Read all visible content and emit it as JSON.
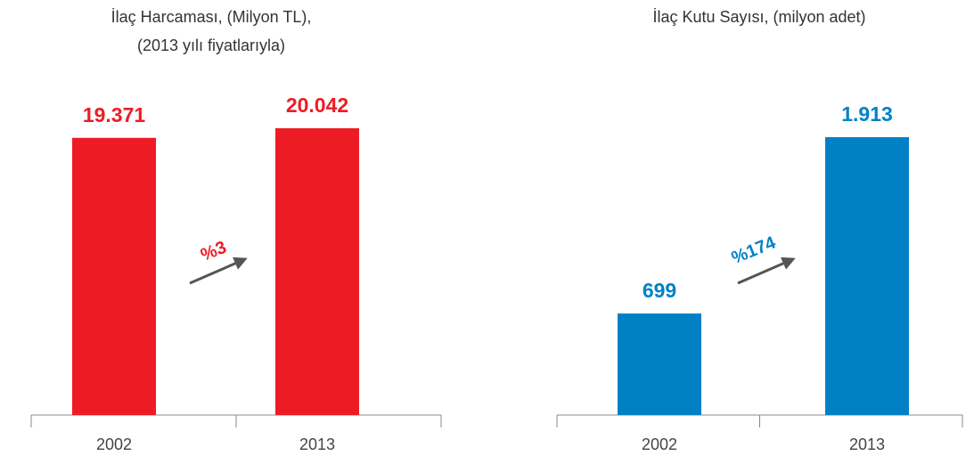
{
  "chart_data": [
    {
      "type": "bar",
      "title": "İlaç Harcaması, (Milyon TL),",
      "subtitle": "(2013 yılı fiyatlarıyla)",
      "categories": [
        "2002",
        "2013"
      ],
      "values": [
        19371,
        20042
      ],
      "value_labels": [
        "19.371",
        "20.042"
      ],
      "color": "#ed1c24",
      "annotations": [
        "%3"
      ]
    },
    {
      "type": "bar",
      "title": "İlaç Kutu Sayısı, (milyon adet)",
      "categories": [
        "2002",
        "2013"
      ],
      "values": [
        699,
        1913
      ],
      "value_labels": [
        "699",
        "1.913"
      ],
      "color": "#0081c6",
      "annotations": [
        "%174"
      ]
    }
  ]
}
